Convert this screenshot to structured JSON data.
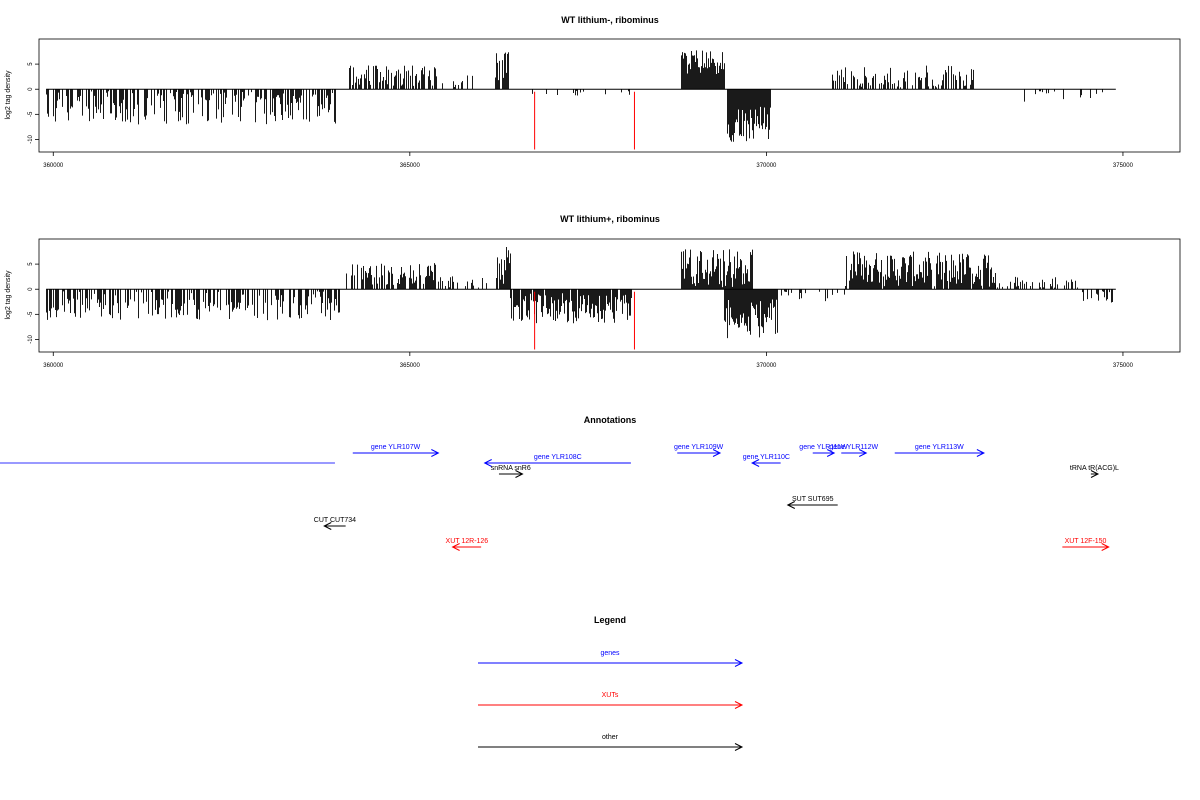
{
  "chart_data": [
    {
      "type": "bar",
      "title": "WT lithium-, ribominus",
      "ylabel": "log2 tag density",
      "xlim": [
        359800,
        375800
      ],
      "ylim": [
        -12.5,
        10
      ],
      "xticks": [
        360000,
        365000,
        370000,
        375000
      ],
      "xtick_labels": [
        "360000",
        "365000",
        "370000",
        "375000"
      ],
      "yticks": [
        -10,
        -5,
        0,
        5
      ],
      "ytick_labels": [
        "-10",
        "-5",
        "0",
        "5"
      ],
      "baseline": {
        "x": [
          359900,
          374900
        ],
        "y": 0
      },
      "segments": [
        {
          "x": [
            359900,
            363950
          ],
          "strand": "neg",
          "level": -3.5,
          "amp": 3.5,
          "density": 0.55
        },
        {
          "x": [
            364150,
            365350
          ],
          "strand": "pos",
          "level": 2.8,
          "amp": 2.2,
          "density": 0.6
        },
        {
          "x": [
            365350,
            366000
          ],
          "strand": "pos",
          "level": 1.5,
          "amp": 1.5,
          "density": 0.25
        },
        {
          "x": [
            366200,
            366400
          ],
          "strand": "pos",
          "level": 4.5,
          "amp": 3.0,
          "density": 0.8
        },
        {
          "x": [
            366700,
            368100
          ],
          "strand": "neg",
          "level": -0.6,
          "amp": 0.8,
          "density": 0.12
        },
        {
          "x": [
            368800,
            369400
          ],
          "strand": "pos",
          "level": 5.5,
          "amp": 2.5,
          "density": 1.0
        },
        {
          "x": [
            369450,
            370050
          ],
          "strand": "neg",
          "level": -7.0,
          "amp": 3.5,
          "density": 1.0
        },
        {
          "x": [
            370900,
            372900
          ],
          "strand": "pos",
          "level": 2.2,
          "amp": 2.5,
          "density": 0.55
        },
        {
          "x": [
            373500,
            374850
          ],
          "strand": "neg",
          "level": -1.2,
          "amp": 1.5,
          "density": 0.15
        }
      ],
      "red_lines": [
        {
          "x": 366750,
          "y": [
            -0.5,
            -12
          ]
        },
        {
          "x": 368150,
          "y": [
            -0.5,
            -12
          ]
        }
      ]
    },
    {
      "type": "bar",
      "title": "WT lithium+, ribominus",
      "ylabel": "log2 tag density",
      "xlim": [
        359800,
        375800
      ],
      "ylim": [
        -12.5,
        10
      ],
      "xticks": [
        360000,
        365000,
        370000,
        375000
      ],
      "xtick_labels": [
        "360000",
        "365000",
        "370000",
        "375000"
      ],
      "yticks": [
        -10,
        -5,
        0,
        5
      ],
      "ytick_labels": [
        "-10",
        "-5",
        "0",
        "5"
      ],
      "baseline": {
        "x": [
          359900,
          374900
        ],
        "y": 0
      },
      "segments": [
        {
          "x": [
            359900,
            364000
          ],
          "strand": "neg",
          "level": -3.2,
          "amp": 3.0,
          "density": 0.55
        },
        {
          "x": [
            364100,
            365350
          ],
          "strand": "pos",
          "level": 3.0,
          "amp": 2.2,
          "density": 0.7
        },
        {
          "x": [
            365350,
            366100
          ],
          "strand": "pos",
          "level": 1.2,
          "amp": 1.5,
          "density": 0.3
        },
        {
          "x": [
            366200,
            366400
          ],
          "strand": "pos",
          "level": 4.5,
          "amp": 4.0,
          "density": 0.9
        },
        {
          "x": [
            366400,
            368100
          ],
          "strand": "neg",
          "level": -3.8,
          "amp": 3.0,
          "density": 0.95
        },
        {
          "x": [
            368800,
            369800
          ],
          "strand": "pos",
          "level": 4.0,
          "amp": 4.0,
          "density": 1.0
        },
        {
          "x": [
            369400,
            370150
          ],
          "strand": "neg",
          "level": -6.0,
          "amp": 4.0,
          "density": 1.0
        },
        {
          "x": [
            370200,
            371100
          ],
          "strand": "neg",
          "level": -1.0,
          "amp": 1.5,
          "density": 0.3
        },
        {
          "x": [
            371100,
            373200
          ],
          "strand": "pos",
          "level": 4.0,
          "amp": 3.5,
          "density": 0.95
        },
        {
          "x": [
            373200,
            374400
          ],
          "strand": "pos",
          "level": 1.2,
          "amp": 1.5,
          "density": 0.3
        },
        {
          "x": [
            374400,
            374850
          ],
          "strand": "neg",
          "level": -1.5,
          "amp": 1.5,
          "density": 0.4
        }
      ],
      "red_lines": [
        {
          "x": 366750,
          "y": [
            -0.5,
            -12
          ]
        },
        {
          "x": 368150,
          "y": [
            -0.5,
            -12
          ]
        }
      ]
    }
  ],
  "annotations": {
    "title": "Annotations",
    "features": [
      {
        "label": "",
        "start": 359200,
        "end": 363950,
        "strand": "none",
        "row": 1,
        "color": "#3333ff"
      },
      {
        "label": "gene YLR107W",
        "start": 364200,
        "end": 365400,
        "strand": "+",
        "row": 0,
        "color": "#0000ff"
      },
      {
        "label": "gene YLR108C",
        "start": 366050,
        "end": 368100,
        "strand": "-",
        "row": 1,
        "color": "#0000ff"
      },
      {
        "label": "snRNA snR6",
        "start": 366250,
        "end": 366580,
        "strand": "+",
        "row": 2,
        "color": "#000000"
      },
      {
        "label": "gene YLR109W",
        "start": 368750,
        "end": 369350,
        "strand": "+",
        "row": 0,
        "color": "#0000ff"
      },
      {
        "label": "gene YLR110C",
        "start": 369800,
        "end": 370200,
        "strand": "-",
        "row": 1,
        "color": "#0000ff"
      },
      {
        "label": "gene YLR111W",
        "start": 370650,
        "end": 370950,
        "strand": "+",
        "row": 0,
        "color": "#0000ff"
      },
      {
        "label": "gene YLR112W",
        "start": 371050,
        "end": 371400,
        "strand": "+",
        "row": 0,
        "color": "#0000ff"
      },
      {
        "label": "gene YLR113W",
        "start": 371800,
        "end": 373050,
        "strand": "+",
        "row": 0,
        "color": "#0000ff"
      },
      {
        "label": "tRNA tR(ACG)L",
        "start": 374550,
        "end": 374650,
        "strand": "+",
        "row": 2,
        "color": "#000000"
      },
      {
        "label": "SUT SUT695",
        "start": 370300,
        "end": 371000,
        "strand": "-",
        "row": 3,
        "color": "#000000"
      },
      {
        "label": "CUT CUT734",
        "start": 363800,
        "end": 364100,
        "strand": "-",
        "row": 4,
        "color": "#000000"
      },
      {
        "label": "XUT 12R-126",
        "start": 365600,
        "end": 366000,
        "strand": "-",
        "row": 5,
        "color": "#ff0000"
      },
      {
        "label": "XUT 12F-150",
        "start": 374150,
        "end": 374800,
        "strand": "+",
        "row": 5,
        "color": "#ff0000"
      }
    ]
  },
  "legend": {
    "title": "Legend",
    "items": [
      {
        "label": "genes",
        "color": "#0000ff"
      },
      {
        "label": "XUTs",
        "color": "#ff0000"
      },
      {
        "label": "other",
        "color": "#000000"
      }
    ]
  }
}
